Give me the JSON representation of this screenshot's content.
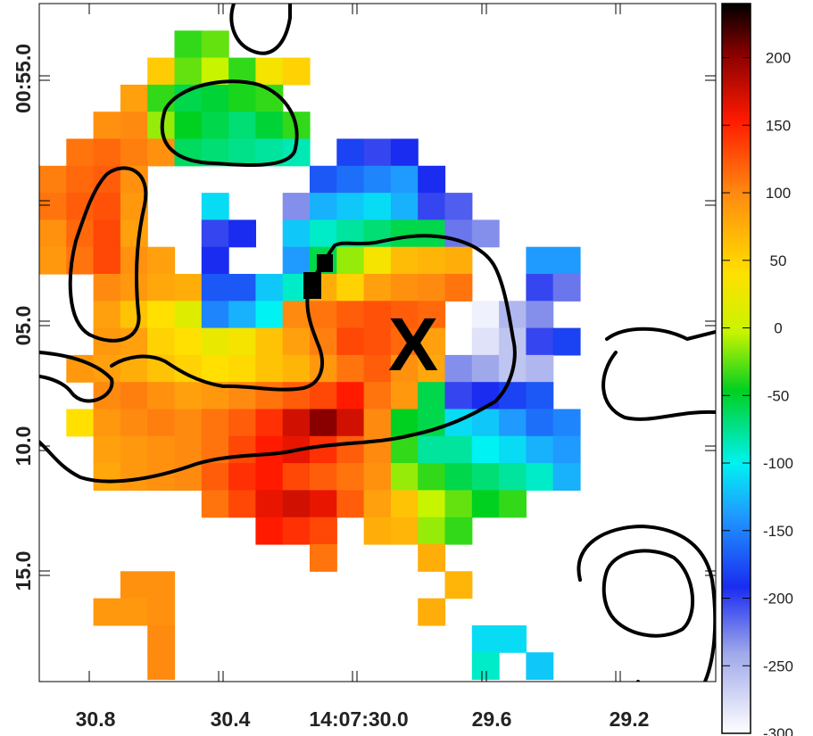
{
  "chart_data": {
    "type": "heatmap",
    "title": "",
    "xlabel": "",
    "ylabel": "",
    "x_ticks": [
      "30.8",
      "30.4",
      "14:07:30.0",
      "29.6",
      "29.2"
    ],
    "y_ticks": [
      "00:55.0",
      "05.0",
      "10.0",
      "15.0"
    ],
    "colorbar": {
      "range": [
        -300,
        240
      ],
      "ticks": [
        "200",
        "150",
        "100",
        "50",
        "0",
        "-50",
        "-100",
        "-150",
        "-200",
        "-250",
        "-300"
      ]
    },
    "marker_label": "X",
    "values": [
      [
        null,
        null,
        null,
        null,
        null,
        null,
        null,
        null,
        null,
        null,
        null,
        null,
        null,
        null,
        null,
        null,
        null,
        null,
        null,
        null
      ],
      [
        null,
        null,
        null,
        null,
        null,
        -40,
        -30,
        null,
        null,
        null,
        null,
        null,
        null,
        null,
        null,
        null,
        null,
        null,
        null,
        null
      ],
      [
        null,
        null,
        null,
        null,
        55,
        -30,
        -10,
        -40,
        30,
        50,
        null,
        null,
        null,
        null,
        null,
        null,
        null,
        null,
        null,
        null
      ],
      [
        null,
        null,
        null,
        85,
        -40,
        -60,
        -55,
        -45,
        -40,
        null,
        null,
        null,
        null,
        null,
        null,
        null,
        null,
        null,
        null,
        null
      ],
      [
        null,
        null,
        95,
        100,
        -20,
        -50,
        -60,
        -70,
        -55,
        -40,
        null,
        null,
        null,
        null,
        null,
        null,
        null,
        null,
        null,
        null
      ],
      [
        null,
        110,
        115,
        105,
        95,
        -65,
        -70,
        -75,
        -80,
        -85,
        null,
        -180,
        -200,
        -190,
        null,
        null,
        null,
        null,
        null,
        null
      ],
      [
        105,
        115,
        120,
        95,
        null,
        null,
        null,
        null,
        null,
        null,
        -170,
        -160,
        -150,
        -140,
        -190,
        null,
        null,
        null,
        null,
        null
      ],
      [
        110,
        120,
        125,
        90,
        null,
        null,
        -110,
        null,
        null,
        -230,
        -130,
        -120,
        -110,
        -130,
        -200,
        -210,
        null,
        null,
        null,
        null
      ],
      [
        95,
        115,
        130,
        85,
        null,
        null,
        -200,
        -190,
        null,
        -120,
        -90,
        -80,
        -70,
        -60,
        -60,
        -220,
        -230,
        null,
        null,
        null
      ],
      [
        90,
        110,
        130,
        95,
        85,
        null,
        -190,
        null,
        null,
        -140,
        -60,
        -20,
        30,
        65,
        70,
        75,
        null,
        null,
        -140,
        -140
      ],
      [
        null,
        null,
        100,
        90,
        80,
        75,
        -170,
        -170,
        -120,
        -90,
        75,
        50,
        85,
        95,
        100,
        110,
        null,
        null,
        -200,
        -220
      ],
      [
        null,
        null,
        85,
        60,
        40,
        10,
        -150,
        -130,
        -100,
        100,
        110,
        120,
        125,
        120,
        115,
        null,
        -290,
        -250,
        -230,
        null
      ],
      [
        null,
        null,
        90,
        85,
        50,
        40,
        20,
        30,
        60,
        85,
        105,
        130,
        125,
        115,
        85,
        null,
        -280,
        -260,
        -200,
        -180
      ],
      [
        null,
        90,
        85,
        75,
        60,
        50,
        40,
        45,
        60,
        70,
        90,
        110,
        120,
        95,
        80,
        -230,
        -240,
        -260,
        -250,
        null
      ],
      [
        null,
        null,
        100,
        105,
        95,
        85,
        90,
        100,
        110,
        120,
        130,
        150,
        110,
        90,
        -60,
        -200,
        -190,
        -180,
        -170,
        null
      ],
      [
        null,
        40,
        90,
        100,
        105,
        100,
        110,
        120,
        140,
        170,
        200,
        170,
        100,
        -50,
        -60,
        -110,
        -120,
        -140,
        -160,
        -150
      ],
      [
        null,
        null,
        85,
        90,
        95,
        100,
        110,
        130,
        150,
        160,
        140,
        120,
        100,
        -40,
        -80,
        -80,
        -100,
        -110,
        -130,
        -140
      ],
      [
        null,
        null,
        80,
        90,
        95,
        100,
        120,
        140,
        150,
        130,
        120,
        110,
        95,
        -20,
        -40,
        -60,
        -70,
        -80,
        -90,
        -130
      ],
      [
        null,
        null,
        null,
        null,
        null,
        null,
        110,
        130,
        160,
        170,
        160,
        120,
        85,
        60,
        -10,
        -30,
        -50,
        -40,
        null,
        null
      ],
      [
        null,
        null,
        null,
        null,
        null,
        null,
        null,
        null,
        150,
        140,
        130,
        null,
        75,
        70,
        -20,
        -40,
        null,
        null,
        null,
        null
      ],
      [
        null,
        null,
        null,
        null,
        null,
        null,
        null,
        null,
        null,
        null,
        110,
        null,
        null,
        null,
        75,
        null,
        null,
        null,
        null,
        null
      ],
      [
        null,
        null,
        null,
        95,
        95,
        null,
        null,
        null,
        null,
        null,
        null,
        null,
        null,
        null,
        null,
        70,
        null,
        null,
        null,
        null
      ],
      [
        null,
        null,
        90,
        90,
        95,
        null,
        null,
        null,
        null,
        null,
        null,
        null,
        null,
        null,
        75,
        null,
        null,
        null,
        null,
        null
      ],
      [
        null,
        null,
        null,
        null,
        100,
        null,
        null,
        null,
        null,
        null,
        null,
        null,
        null,
        null,
        null,
        null,
        -110,
        -110,
        null,
        null
      ],
      [
        null,
        null,
        null,
        null,
        100,
        null,
        null,
        null,
        null,
        null,
        null,
        null,
        null,
        null,
        null,
        null,
        -90,
        null,
        -120,
        null
      ],
      [
        null,
        null,
        null,
        null,
        null,
        null,
        null,
        null,
        null,
        null,
        null,
        null,
        null,
        null,
        null,
        null,
        null,
        null,
        null,
        null
      ]
    ]
  }
}
